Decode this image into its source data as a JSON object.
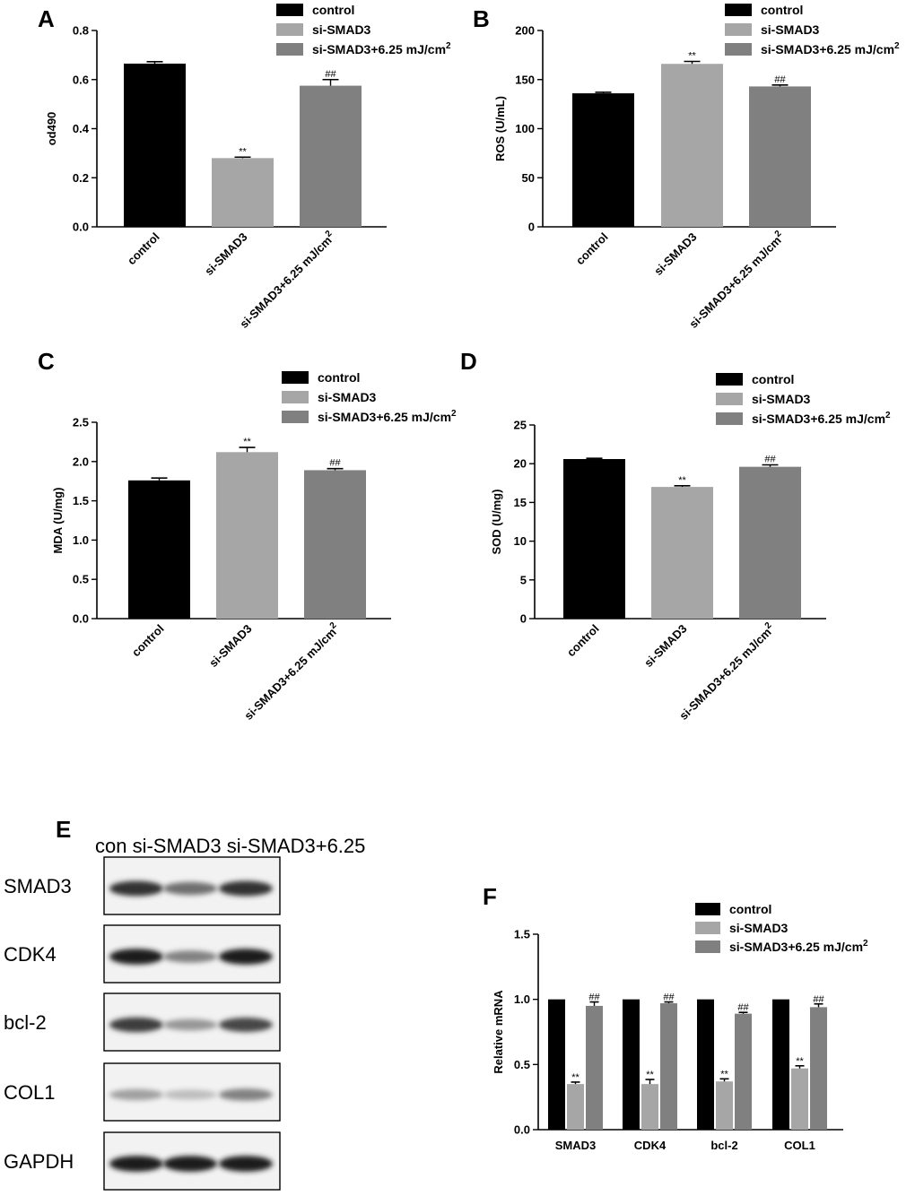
{
  "legend": {
    "labels": [
      "control",
      "si-SMAD3",
      "si-SMAD3+6.25 mJ/cm"
    ],
    "superscript": "2"
  },
  "colors": {
    "control": "#000000",
    "si_smad3": "#a6a6a6",
    "treated": "#808080"
  },
  "chart_data": [
    {
      "panel": "A",
      "type": "bar",
      "categories": [
        "control",
        "si-SMAD3",
        "si-SMAD3+6.25 mJ/cm"
      ],
      "category_superscript": "2",
      "values": [
        0.665,
        0.28,
        0.575
      ],
      "errors": [
        0.008,
        0.004,
        0.025
      ],
      "significance": [
        "",
        "**",
        "##"
      ],
      "ylabel": "od490",
      "ylim": [
        0,
        0.8
      ],
      "yticks": [
        "0.0",
        "0.2",
        "0.4",
        "0.6",
        "0.8"
      ]
    },
    {
      "panel": "B",
      "type": "bar",
      "categories": [
        "control",
        "si-SMAD3",
        "si-SMAD3+6.25 mJ/cm"
      ],
      "category_superscript": "2",
      "values": [
        136,
        166,
        143
      ],
      "errors": [
        1,
        2.5,
        1.5
      ],
      "significance": [
        "",
        "**",
        "##"
      ],
      "ylabel": "ROS (U/mL)",
      "ylim": [
        0,
        200
      ],
      "yticks": [
        "0",
        "50",
        "100",
        "150",
        "200"
      ]
    },
    {
      "panel": "C",
      "type": "bar",
      "categories": [
        "control",
        "si-SMAD3",
        "si-SMAD3+6.25 mJ/cm"
      ],
      "category_superscript": "2",
      "values": [
        1.76,
        2.12,
        1.89
      ],
      "errors": [
        0.03,
        0.06,
        0.02
      ],
      "significance": [
        "",
        "**",
        "##"
      ],
      "ylabel": "MDA (U/mg)",
      "ylim": [
        0,
        2.5
      ],
      "yticks": [
        "0.0",
        "0.5",
        "1.0",
        "1.5",
        "2.0",
        "2.5"
      ]
    },
    {
      "panel": "D",
      "type": "bar",
      "categories": [
        "control",
        "si-SMAD3",
        "si-SMAD3+6.25 mJ/cm"
      ],
      "category_superscript": "2",
      "values": [
        20.6,
        17.0,
        19.6
      ],
      "errors": [
        0.1,
        0.15,
        0.25
      ],
      "significance": [
        "",
        "**",
        "##"
      ],
      "ylabel": "SOD (U/mg)",
      "ylim": [
        0,
        25
      ],
      "yticks": [
        "0",
        "5",
        "10",
        "15",
        "20",
        "25"
      ]
    },
    {
      "panel": "F",
      "type": "bar",
      "categories": [
        "SMAD3",
        "CDK4",
        "bcl-2",
        "COL1"
      ],
      "series": [
        {
          "name": "control",
          "values": [
            1.0,
            1.0,
            1.0,
            1.0
          ],
          "errors": [
            0,
            0,
            0,
            0
          ],
          "significance": [
            "",
            "",
            "",
            ""
          ]
        },
        {
          "name": "si-SMAD3",
          "values": [
            0.35,
            0.35,
            0.37,
            0.47
          ],
          "errors": [
            0.015,
            0.035,
            0.02,
            0.02
          ],
          "significance": [
            "**",
            "**",
            "**",
            "**"
          ]
        },
        {
          "name": "si-SMAD3+6.25 mJ/cm",
          "values": [
            0.95,
            0.97,
            0.89,
            0.94
          ],
          "errors": [
            0.03,
            0.01,
            0.01,
            0.025
          ],
          "significance": [
            "##",
            "##",
            "##",
            "##"
          ]
        }
      ],
      "ylabel": "Relative mRNA",
      "ylim": [
        0,
        1.5
      ],
      "yticks": [
        "0.0",
        "0.5",
        "1.0",
        "1.5"
      ]
    }
  ],
  "blot": {
    "letter": "E",
    "header": "con si-SMAD3 si-SMAD3+6.25",
    "rows": [
      {
        "label": "SMAD3",
        "intensity": [
          0.85,
          0.55,
          0.85
        ]
      },
      {
        "label": "CDK4",
        "intensity": [
          0.95,
          0.45,
          0.95
        ]
      },
      {
        "label": "bcl-2",
        "intensity": [
          0.8,
          0.35,
          0.75
        ]
      },
      {
        "label": "COL1",
        "intensity": [
          0.3,
          0.15,
          0.45
        ]
      },
      {
        "label": "GAPDH",
        "intensity": [
          0.95,
          0.95,
          0.95
        ]
      }
    ]
  }
}
